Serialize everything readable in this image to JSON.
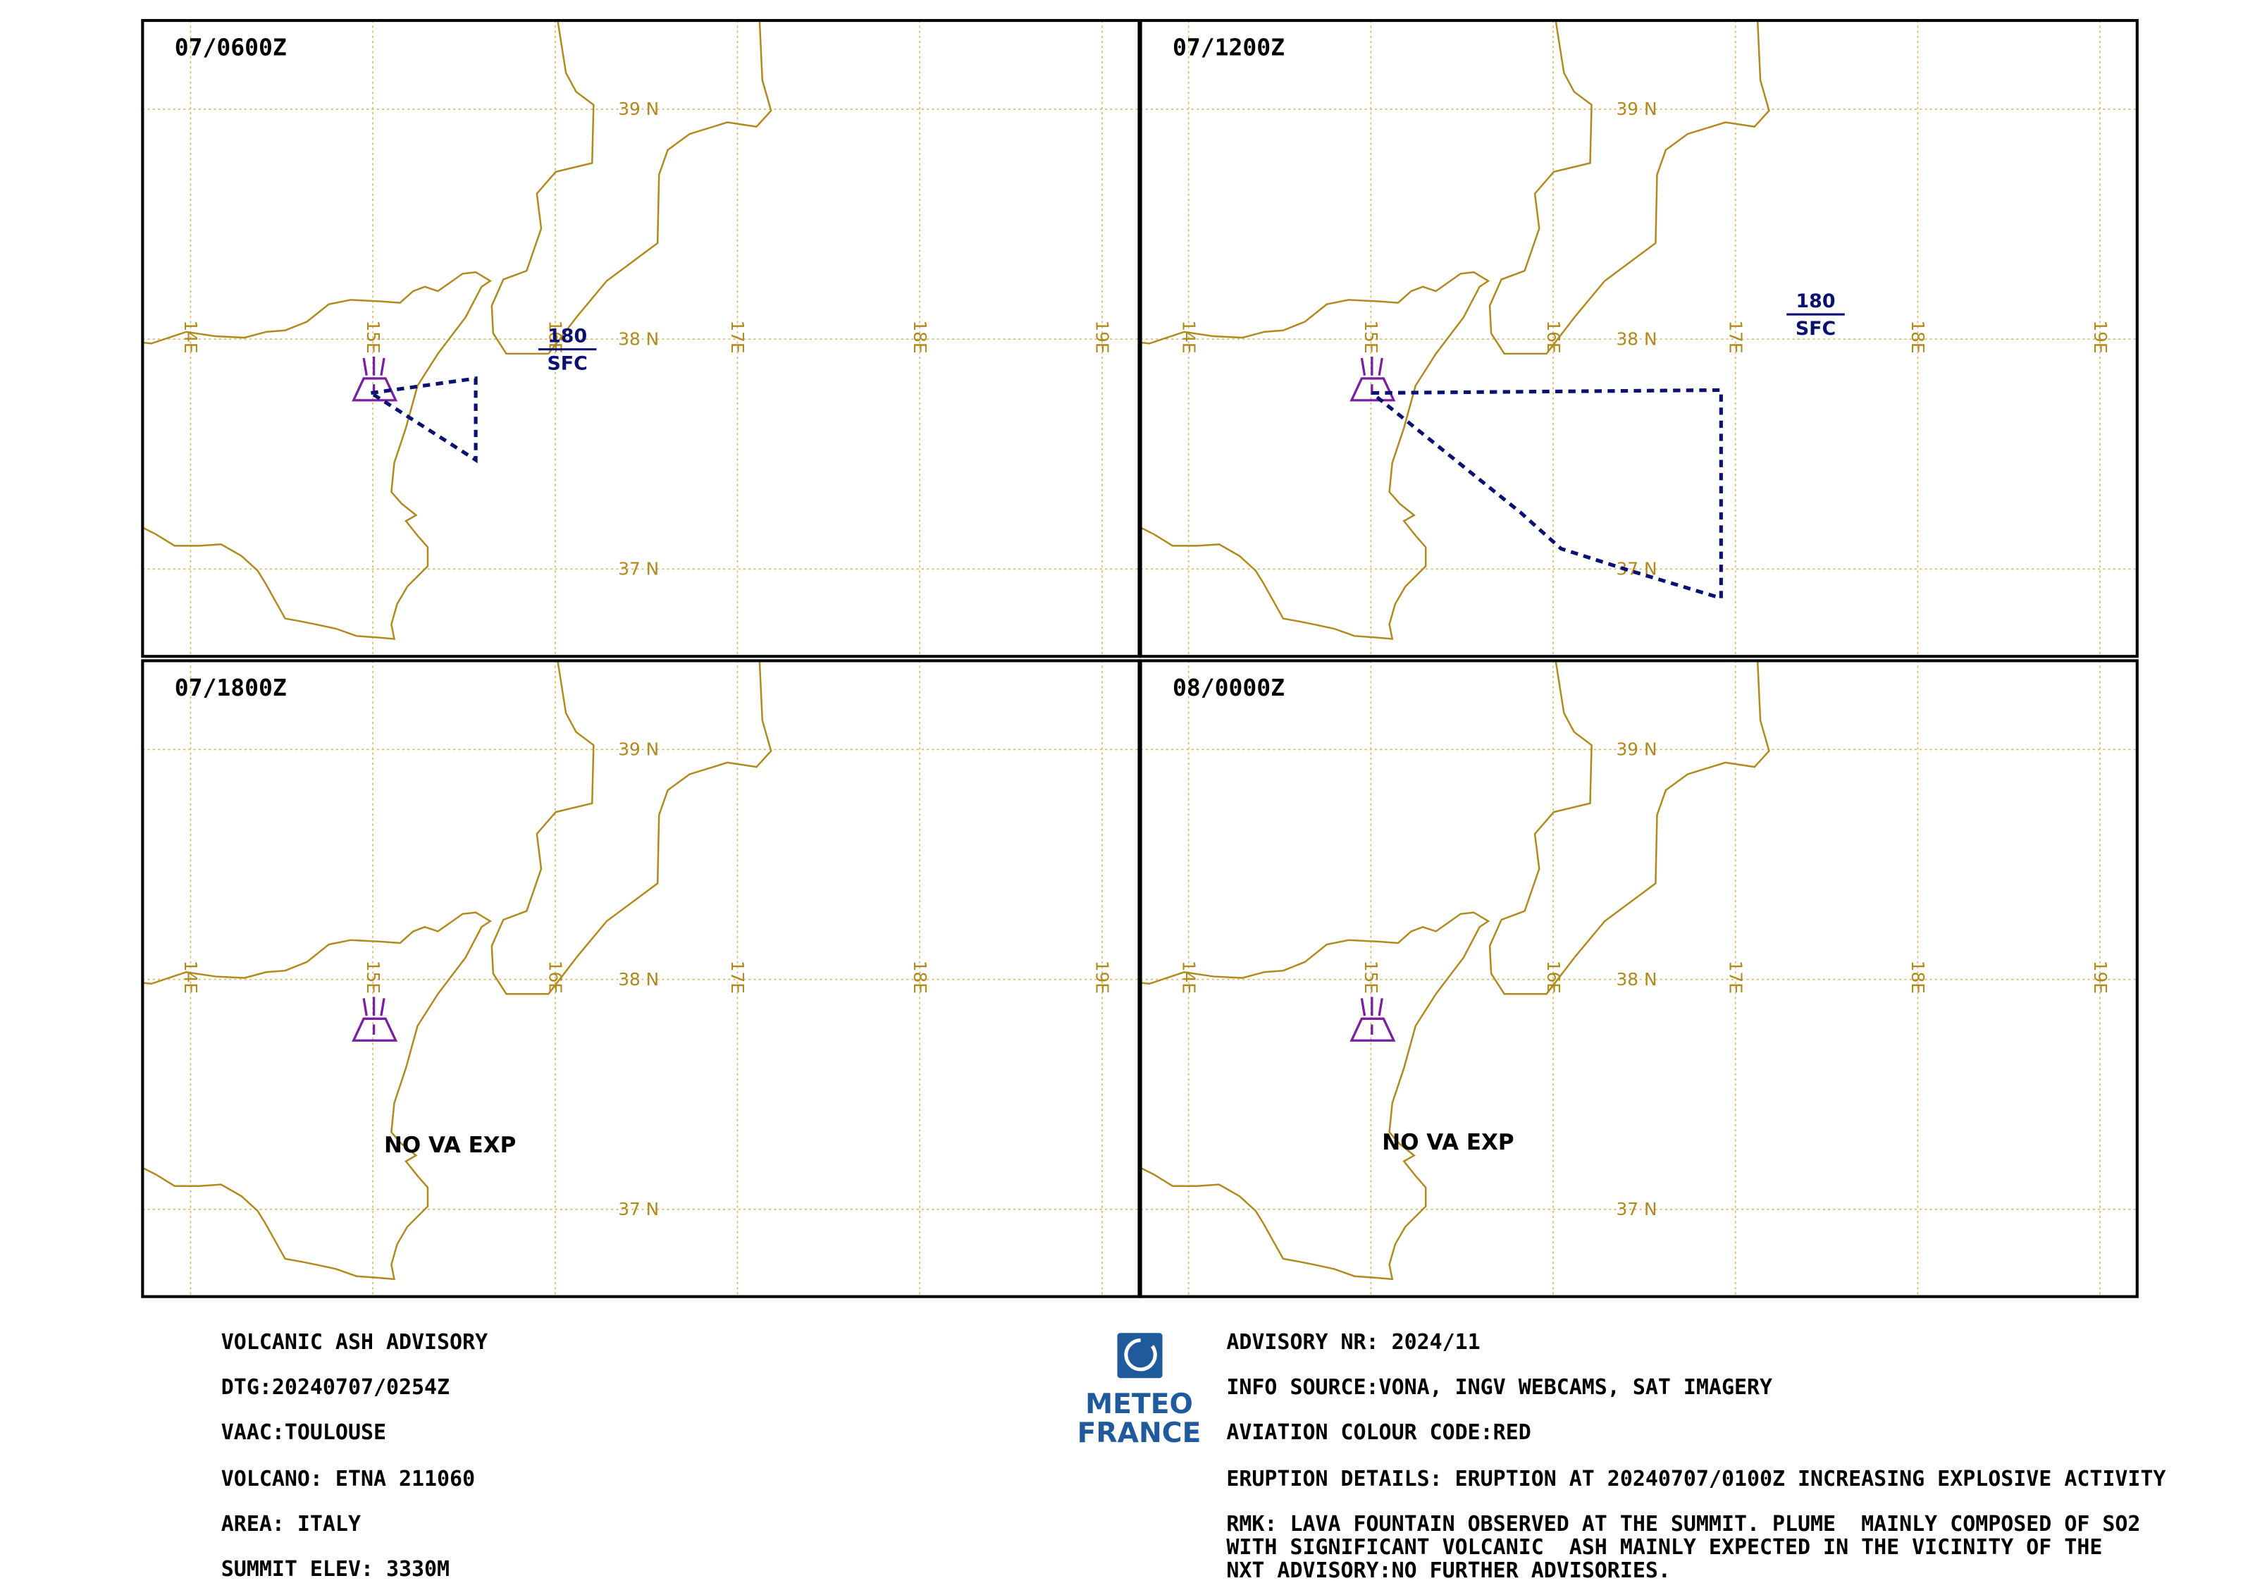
{
  "panels": [
    {
      "time": "07/0600Z",
      "plume": {
        "top": "180",
        "base": "SFC"
      }
    },
    {
      "time": "07/1200Z",
      "plume": {
        "top": "180",
        "base": "SFC"
      }
    },
    {
      "time": "07/1800Z",
      "note": "NO VA EXP"
    },
    {
      "time": "08/0000Z",
      "note": "NO VA EXP"
    }
  ],
  "grid": {
    "lon_labels": [
      "14E",
      "15E",
      "16E",
      "17E",
      "18E",
      "19E"
    ],
    "lat_labels": [
      "39 N",
      "38 N",
      "37 N"
    ]
  },
  "footer": {
    "left": [
      "VOLCANIC ASH ADVISORY",
      "DTG:20240707/0254Z",
      "VAAC:TOULOUSE",
      "VOLCANO: ETNA 211060",
      "AREA: ITALY",
      "SUMMIT ELEV: 3330M"
    ],
    "right": [
      "ADVISORY NR: 2024/11",
      "INFO SOURCE:VONA, INGV WEBCAMS, SAT IMAGERY",
      "AVIATION COLOUR CODE:RED",
      "ERUPTION DETAILS: ERUPTION AT 20240707/0100Z INCREASING EXPLOSIVE ACTIVITY"
    ],
    "remarks": [
      "RMK: LAVA FOUNTAIN OBSERVED AT THE SUMMIT. PLUME  MAINLY COMPOSED OF SO2",
      "WITH SIGNIFICANT VOLCANIC  ASH MAINLY EXPECTED IN THE VICINITY OF THE",
      "NXT ADVISORY:NO FURTHER ADVISORIES."
    ]
  },
  "logo": [
    "METEO",
    "FRANCE"
  ]
}
